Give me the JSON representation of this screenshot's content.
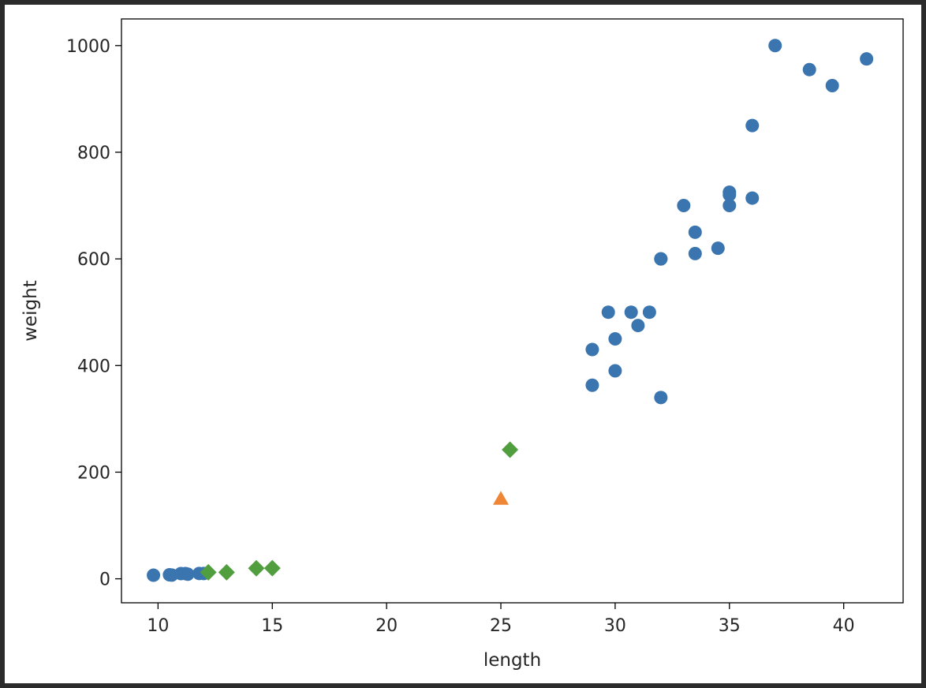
{
  "chart_data": {
    "type": "scatter",
    "title": "",
    "xlabel": "length",
    "ylabel": "weight",
    "xlim": [
      8.4,
      42.6
    ],
    "ylim": [
      -45,
      1050
    ],
    "xticks": [
      10,
      15,
      20,
      25,
      30,
      35,
      40
    ],
    "yticks": [
      0,
      200,
      400,
      600,
      800,
      1000
    ],
    "grid": false,
    "legend": null,
    "series": [
      {
        "marker": "circle",
        "color": "#3a75b0",
        "points": [
          [
            9.8,
            6.7
          ],
          [
            10.5,
            7.5
          ],
          [
            10.6,
            7.0
          ],
          [
            11.0,
            9.7
          ],
          [
            11.2,
            9.8
          ],
          [
            11.3,
            8.7
          ],
          [
            11.8,
            10.0
          ],
          [
            12.0,
            9.9
          ],
          [
            29.0,
            363
          ],
          [
            29.0,
            430
          ],
          [
            29.7,
            500
          ],
          [
            30.0,
            390
          ],
          [
            30.0,
            450
          ],
          [
            30.7,
            500
          ],
          [
            31.0,
            475
          ],
          [
            31.5,
            500
          ],
          [
            32.0,
            340
          ],
          [
            32.0,
            600
          ],
          [
            32.0,
            600
          ],
          [
            33.0,
            700
          ],
          [
            33.5,
            610
          ],
          [
            33.5,
            650
          ],
          [
            34.5,
            620
          ],
          [
            35.0,
            700
          ],
          [
            35.0,
            725
          ],
          [
            35.0,
            720
          ],
          [
            36.0,
            714
          ],
          [
            36.0,
            850
          ],
          [
            37.0,
            1000
          ],
          [
            38.5,
            955
          ],
          [
            39.5,
            925
          ],
          [
            41.0,
            975
          ]
        ]
      },
      {
        "marker": "triangle",
        "color": "#ef8636",
        "points": [
          [
            25,
            150
          ]
        ]
      },
      {
        "marker": "diamond",
        "color": "#519e3e",
        "points": [
          [
            12.2,
            12.2
          ],
          [
            13.0,
            12.2
          ],
          [
            14.3,
            19.7
          ],
          [
            15.0,
            19.9
          ],
          [
            25.4,
            242
          ]
        ]
      }
    ]
  }
}
